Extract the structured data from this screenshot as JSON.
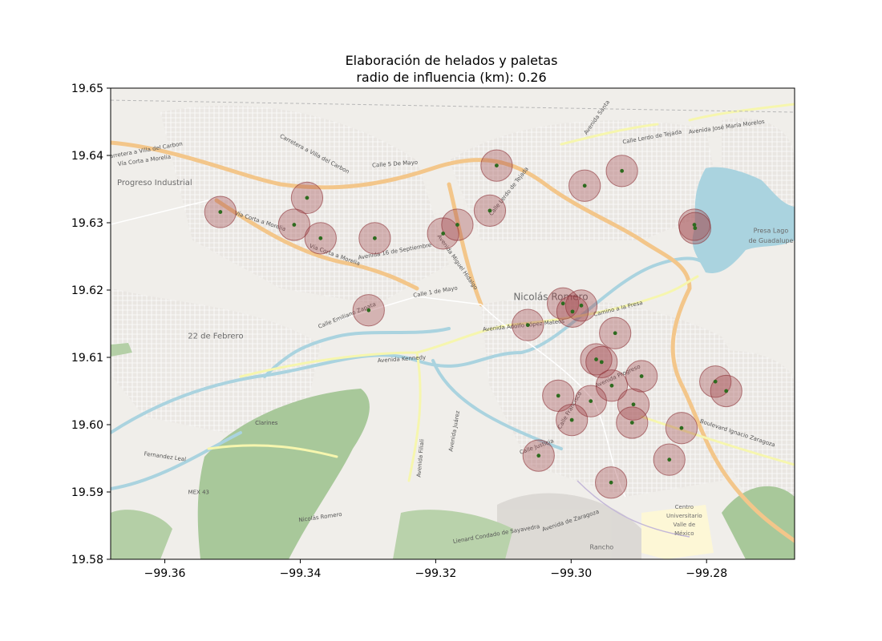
{
  "chart_data": {
    "type": "scatter",
    "title_line1": "Elaboración de helados y paletas",
    "title_line2": "radio de influencia (km): 0.26",
    "xlim": [
      -99.368,
      -99.267
    ],
    "ylim": [
      19.58,
      19.65
    ],
    "xticks": [
      -99.36,
      -99.34,
      -99.32,
      -99.3,
      -99.28
    ],
    "xtick_labels": [
      "−99.36",
      "−99.34",
      "−99.32",
      "−99.30",
      "−99.28"
    ],
    "yticks": [
      19.58,
      19.59,
      19.6,
      19.61,
      19.62,
      19.63,
      19.64,
      19.65
    ],
    "ytick_labels": [
      "19.58",
      "19.59",
      "19.60",
      "19.61",
      "19.62",
      "19.63",
      "19.64",
      "19.65"
    ],
    "grid": false,
    "radius_km": 0.26,
    "marker_color": "#2e6b1f",
    "circle_fill": "#a0454a",
    "circle_edge": "#8a2e34",
    "points": [
      {
        "x": -99.3518,
        "y": 19.6316
      },
      {
        "x": -99.339,
        "y": 19.6337
      },
      {
        "x": -99.3409,
        "y": 19.6297
      },
      {
        "x": -99.337,
        "y": 19.6277
      },
      {
        "x": -99.329,
        "y": 19.6277
      },
      {
        "x": -99.3299,
        "y": 19.617
      },
      {
        "x": -99.3189,
        "y": 19.6284
      },
      {
        "x": -99.3168,
        "y": 19.6297
      },
      {
        "x": -99.312,
        "y": 19.6318
      },
      {
        "x": -99.311,
        "y": 19.6385
      },
      {
        "x": -99.298,
        "y": 19.6355
      },
      {
        "x": -99.2925,
        "y": 19.6377
      },
      {
        "x": -99.2818,
        "y": 19.6297
      },
      {
        "x": -99.2817,
        "y": 19.6292
      },
      {
        "x": -99.3064,
        "y": 19.6148
      },
      {
        "x": -99.3012,
        "y": 19.618
      },
      {
        "x": -99.2985,
        "y": 19.6177
      },
      {
        "x": -99.2998,
        "y": 19.6168
      },
      {
        "x": -99.2935,
        "y": 19.6136
      },
      {
        "x": -99.2963,
        "y": 19.6097
      },
      {
        "x": -99.2955,
        "y": 19.6093
      },
      {
        "x": -99.2896,
        "y": 19.6072
      },
      {
        "x": -99.294,
        "y": 19.6058
      },
      {
        "x": -99.2908,
        "y": 19.603
      },
      {
        "x": -99.291,
        "y": 19.6003
      },
      {
        "x": -99.3019,
        "y": 19.6043
      },
      {
        "x": -99.2971,
        "y": 19.6035
      },
      {
        "x": -99.2999,
        "y": 19.6007
      },
      {
        "x": -99.2837,
        "y": 19.5995
      },
      {
        "x": -99.2855,
        "y": 19.5948
      },
      {
        "x": -99.3048,
        "y": 19.5954
      },
      {
        "x": -99.2941,
        "y": 19.5914
      },
      {
        "x": -99.2787,
        "y": 19.6064
      },
      {
        "x": -99.2771,
        "y": 19.605
      }
    ]
  },
  "map": {
    "place_labels": [
      {
        "text": "Progreso Industrial",
        "x": -99.3615,
        "y": 19.6356,
        "size": 10
      },
      {
        "text": "Nicolás Romero",
        "x": -99.303,
        "y": 19.6185,
        "size": 12
      },
      {
        "text": "22 de Febrero",
        "x": -99.3525,
        "y": 19.6128,
        "size": 10
      },
      {
        "text": "Presa Lago",
        "x": -99.2705,
        "y": 19.6285,
        "size": 8
      },
      {
        "text": "de Guadalupe",
        "x": -99.2705,
        "y": 19.627,
        "size": 8
      },
      {
        "text": "Centro",
        "x": -99.2833,
        "y": 19.5875,
        "size": 7
      },
      {
        "text": "Universitario",
        "x": -99.2833,
        "y": 19.5862,
        "size": 7
      },
      {
        "text": "Valle de",
        "x": -99.2833,
        "y": 19.5849,
        "size": 7
      },
      {
        "text": "México",
        "x": -99.2833,
        "y": 19.5836,
        "size": 7
      },
      {
        "text": "Rancho",
        "x": -99.2955,
        "y": 19.5815,
        "size": 8
      }
    ],
    "road_labels": [
      {
        "text": "Carretera a Villa del Carbon",
        "x": -99.363,
        "y": 19.6405,
        "rot": -10
      },
      {
        "text": "Vía Corta a Morelia",
        "x": -99.363,
        "y": 19.639,
        "rot": -8
      },
      {
        "text": "Carretera a Villa del Carbon",
        "x": -99.338,
        "y": 19.64,
        "rot": 28
      },
      {
        "text": "Calle 5 De Mayo",
        "x": -99.326,
        "y": 19.6385,
        "rot": -4
      },
      {
        "text": "Vía Corta a Morelia",
        "x": -99.346,
        "y": 19.63,
        "rot": 18
      },
      {
        "text": "Vía Corta a Morelia",
        "x": -99.335,
        "y": 19.625,
        "rot": 20
      },
      {
        "text": "Avenida 16 de Septiembre",
        "x": -99.326,
        "y": 19.6255,
        "rot": -10
      },
      {
        "text": "Calle 1 de Mayo",
        "x": -99.32,
        "y": 19.6195,
        "rot": -10
      },
      {
        "text": "Calle Emiliano Zapata",
        "x": -99.333,
        "y": 19.616,
        "rot": -22
      },
      {
        "text": "Avenida Adolfo López Mateos",
        "x": -99.307,
        "y": 19.6145,
        "rot": -6
      },
      {
        "text": "Avenida Kennedy",
        "x": -99.325,
        "y": 19.6095,
        "rot": -4
      },
      {
        "text": "Avenida Miguel Hidalgo",
        "x": -99.317,
        "y": 19.624,
        "rot": 55
      },
      {
        "text": "Calle Lerdo de Tejada",
        "x": -99.309,
        "y": 19.6345,
        "rot": -52
      },
      {
        "text": "Calle Lerdo de Tejada",
        "x": -99.288,
        "y": 19.6425,
        "rot": -10
      },
      {
        "text": "Avenida José María Morelos",
        "x": -99.277,
        "y": 19.644,
        "rot": -8
      },
      {
        "text": "Avenida Santa",
        "x": -99.296,
        "y": 19.6455,
        "rot": -55
      },
      {
        "text": "Camino a la Presa",
        "x": -99.293,
        "y": 19.617,
        "rot": -14
      },
      {
        "text": "Avenida Progreso",
        "x": -99.293,
        "y": 19.607,
        "rot": -24
      },
      {
        "text": "Boulevard Ignacio Zaragoza",
        "x": -99.2755,
        "y": 19.5985,
        "rot": 18
      },
      {
        "text": "Calle Francisco",
        "x": -99.3,
        "y": 19.602,
        "rot": -60
      },
      {
        "text": "Avenida Juárez",
        "x": -99.317,
        "y": 19.599,
        "rot": -80
      },
      {
        "text": "Calle Justicia",
        "x": -99.305,
        "y": 19.5965,
        "rot": -20
      },
      {
        "text": "Avenida Filiali",
        "x": -99.322,
        "y": 19.595,
        "rot": -85
      },
      {
        "text": "Fernandez Leal",
        "x": -99.36,
        "y": 19.595,
        "rot": 8
      },
      {
        "text": "Clarines",
        "x": -99.345,
        "y": 19.6,
        "rot": 0
      },
      {
        "text": "Nicolás Romero",
        "x": -99.337,
        "y": 19.586,
        "rot": -8
      },
      {
        "text": "MEX 43",
        "x": -99.355,
        "y": 19.5897,
        "rot": 0
      },
      {
        "text": "Avenida de Zaragoza",
        "x": -99.3,
        "y": 19.5855,
        "rot": -18
      },
      {
        "text": "Lienard Condado de Sayavedra",
        "x": -99.311,
        "y": 19.5835,
        "rot": -10
      }
    ]
  }
}
